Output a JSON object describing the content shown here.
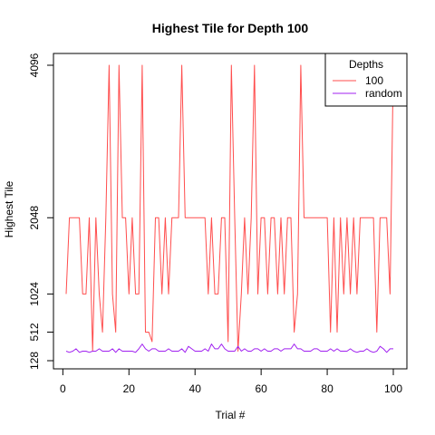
{
  "chart_data": {
    "type": "line",
    "title": "Highest Tile for Depth 100",
    "xlabel": "Trial #",
    "ylabel": "Highest Tile",
    "xlim": [
      1,
      100
    ],
    "ylim": [
      128,
      4096
    ],
    "x_ticks": [
      0,
      20,
      40,
      60,
      80,
      100
    ],
    "x_tick_labels": [
      "0",
      "20",
      "40",
      "60",
      "80",
      "100"
    ],
    "y_ticks": [
      128,
      512,
      1024,
      2048,
      4096
    ],
    "y_tick_labels": [
      "128",
      "512",
      "1024",
      "2048",
      "4096"
    ],
    "grid": false,
    "legend": {
      "title": "Depths",
      "placement": "top-right",
      "entries": [
        {
          "label": "100",
          "color": "#ff4d4d"
        },
        {
          "label": "random",
          "color": "#a020f0"
        }
      ]
    },
    "series": [
      {
        "name": "100",
        "color": "#ff4d4d",
        "x": [
          1,
          2,
          3,
          4,
          5,
          6,
          7,
          8,
          9,
          10,
          11,
          12,
          13,
          14,
          15,
          16,
          17,
          18,
          19,
          20,
          21,
          22,
          23,
          24,
          25,
          26,
          27,
          28,
          29,
          30,
          31,
          32,
          33,
          34,
          35,
          36,
          37,
          38,
          39,
          40,
          41,
          42,
          43,
          44,
          45,
          46,
          47,
          48,
          49,
          50,
          51,
          52,
          53,
          54,
          55,
          56,
          57,
          58,
          59,
          60,
          61,
          62,
          63,
          64,
          65,
          66,
          67,
          68,
          69,
          70,
          71,
          72,
          73,
          74,
          75,
          76,
          77,
          78,
          79,
          80,
          81,
          82,
          83,
          84,
          85,
          86,
          87,
          88,
          89,
          90,
          91,
          92,
          93,
          94,
          95,
          96,
          97,
          98,
          99,
          100
        ],
        "values": [
          1024,
          2048,
          2048,
          2048,
          2048,
          1024,
          1024,
          2048,
          256,
          2048,
          1024,
          512,
          2048,
          4096,
          1024,
          512,
          4096,
          2048,
          2048,
          1024,
          2048,
          1024,
          1024,
          4096,
          512,
          512,
          384,
          2048,
          2048,
          1024,
          2048,
          1024,
          2048,
          2048,
          2048,
          4096,
          2048,
          2048,
          2048,
          2048,
          2048,
          2048,
          2048,
          1024,
          2048,
          1024,
          1024,
          2048,
          2048,
          384,
          4096,
          2048,
          256,
          1024,
          2048,
          1024,
          2048,
          4096,
          1024,
          2048,
          2048,
          1024,
          2048,
          2048,
          1024,
          2048,
          1024,
          2048,
          2048,
          512,
          1024,
          4096,
          2048,
          2048,
          2048,
          2048,
          2048,
          2048,
          2048,
          2048,
          512,
          2048,
          512,
          2048,
          1024,
          2048,
          1024,
          2048,
          1024,
          2048,
          2048,
          2048,
          2048,
          2048,
          512,
          2048,
          2048,
          2048,
          1024,
          4096
        ]
      },
      {
        "name": "random",
        "color": "#a020f0",
        "x": [
          1,
          2,
          3,
          4,
          5,
          6,
          7,
          8,
          9,
          10,
          11,
          12,
          13,
          14,
          15,
          16,
          17,
          18,
          19,
          20,
          21,
          22,
          23,
          24,
          25,
          26,
          27,
          28,
          29,
          30,
          31,
          32,
          33,
          34,
          35,
          36,
          37,
          38,
          39,
          40,
          41,
          42,
          43,
          44,
          45,
          46,
          47,
          48,
          49,
          50,
          51,
          52,
          53,
          54,
          55,
          56,
          57,
          58,
          59,
          60,
          61,
          62,
          63,
          64,
          65,
          66,
          67,
          68,
          69,
          70,
          71,
          72,
          73,
          74,
          75,
          76,
          77,
          78,
          79,
          80,
          81,
          82,
          83,
          84,
          85,
          86,
          87,
          88,
          89,
          90,
          91,
          92,
          93,
          94,
          95,
          96,
          97,
          98,
          99,
          100
        ],
        "values": [
          256,
          240,
          256,
          288,
          240,
          256,
          256,
          240,
          256,
          256,
          288,
          256,
          256,
          256,
          288,
          240,
          288,
          256,
          256,
          256,
          256,
          240,
          288,
          352,
          288,
          256,
          288,
          288,
          256,
          256,
          256,
          288,
          256,
          256,
          256,
          288,
          240,
          320,
          288,
          256,
          256,
          256,
          288,
          256,
          352,
          288,
          288,
          352,
          288,
          256,
          256,
          256,
          320,
          256,
          288,
          256,
          256,
          288,
          288,
          256,
          288,
          256,
          256,
          288,
          288,
          256,
          288,
          288,
          288,
          352,
          288,
          288,
          256,
          256,
          256,
          288,
          288,
          256,
          256,
          256,
          288,
          256,
          288,
          256,
          256,
          256,
          288,
          256,
          240,
          256,
          256,
          288,
          256,
          240,
          256,
          320,
          288,
          240,
          288,
          288
        ]
      }
    ]
  }
}
